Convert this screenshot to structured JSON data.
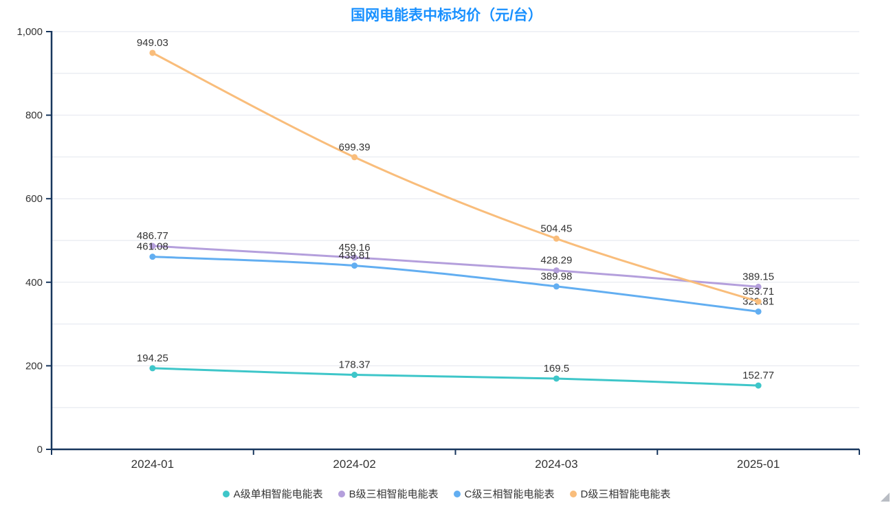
{
  "title": "国网电能表中标均价（元/台）",
  "chart_data": {
    "type": "line",
    "title": "国网电能表中标均价（元/台）",
    "categories": [
      "2024-01",
      "2024-02",
      "2024-03",
      "2025-01"
    ],
    "series": [
      {
        "name": "A级单相智能电能表",
        "color": "#3ec6c9",
        "values": [
          194.25,
          178.37,
          169.5,
          152.77
        ]
      },
      {
        "name": "B级三相智能电能表",
        "color": "#b49fdc",
        "values": [
          486.77,
          459.16,
          428.29,
          389.15
        ]
      },
      {
        "name": "C级三相智能电能表",
        "color": "#62aef1",
        "values": [
          461.08,
          439.81,
          389.98,
          329.81
        ]
      },
      {
        "name": "D级三相智能电能表",
        "color": "#f9bd7b",
        "values": [
          949.03,
          699.39,
          504.45,
          353.71
        ]
      }
    ],
    "xlabel": "",
    "ylabel": "",
    "ylim": [
      0,
      1000
    ],
    "ytick_interval": 200,
    "grid_interval": 100,
    "ytick_labels": [
      "0",
      "200",
      "400",
      "600",
      "800",
      "1,000"
    ],
    "grid": true,
    "smooth": true,
    "legend_position": "bottom",
    "data_labels": true
  },
  "colors": {
    "title": "#1890ff",
    "axis": "#17365d",
    "gridline": "#e2e6ee",
    "label": "#333333"
  }
}
